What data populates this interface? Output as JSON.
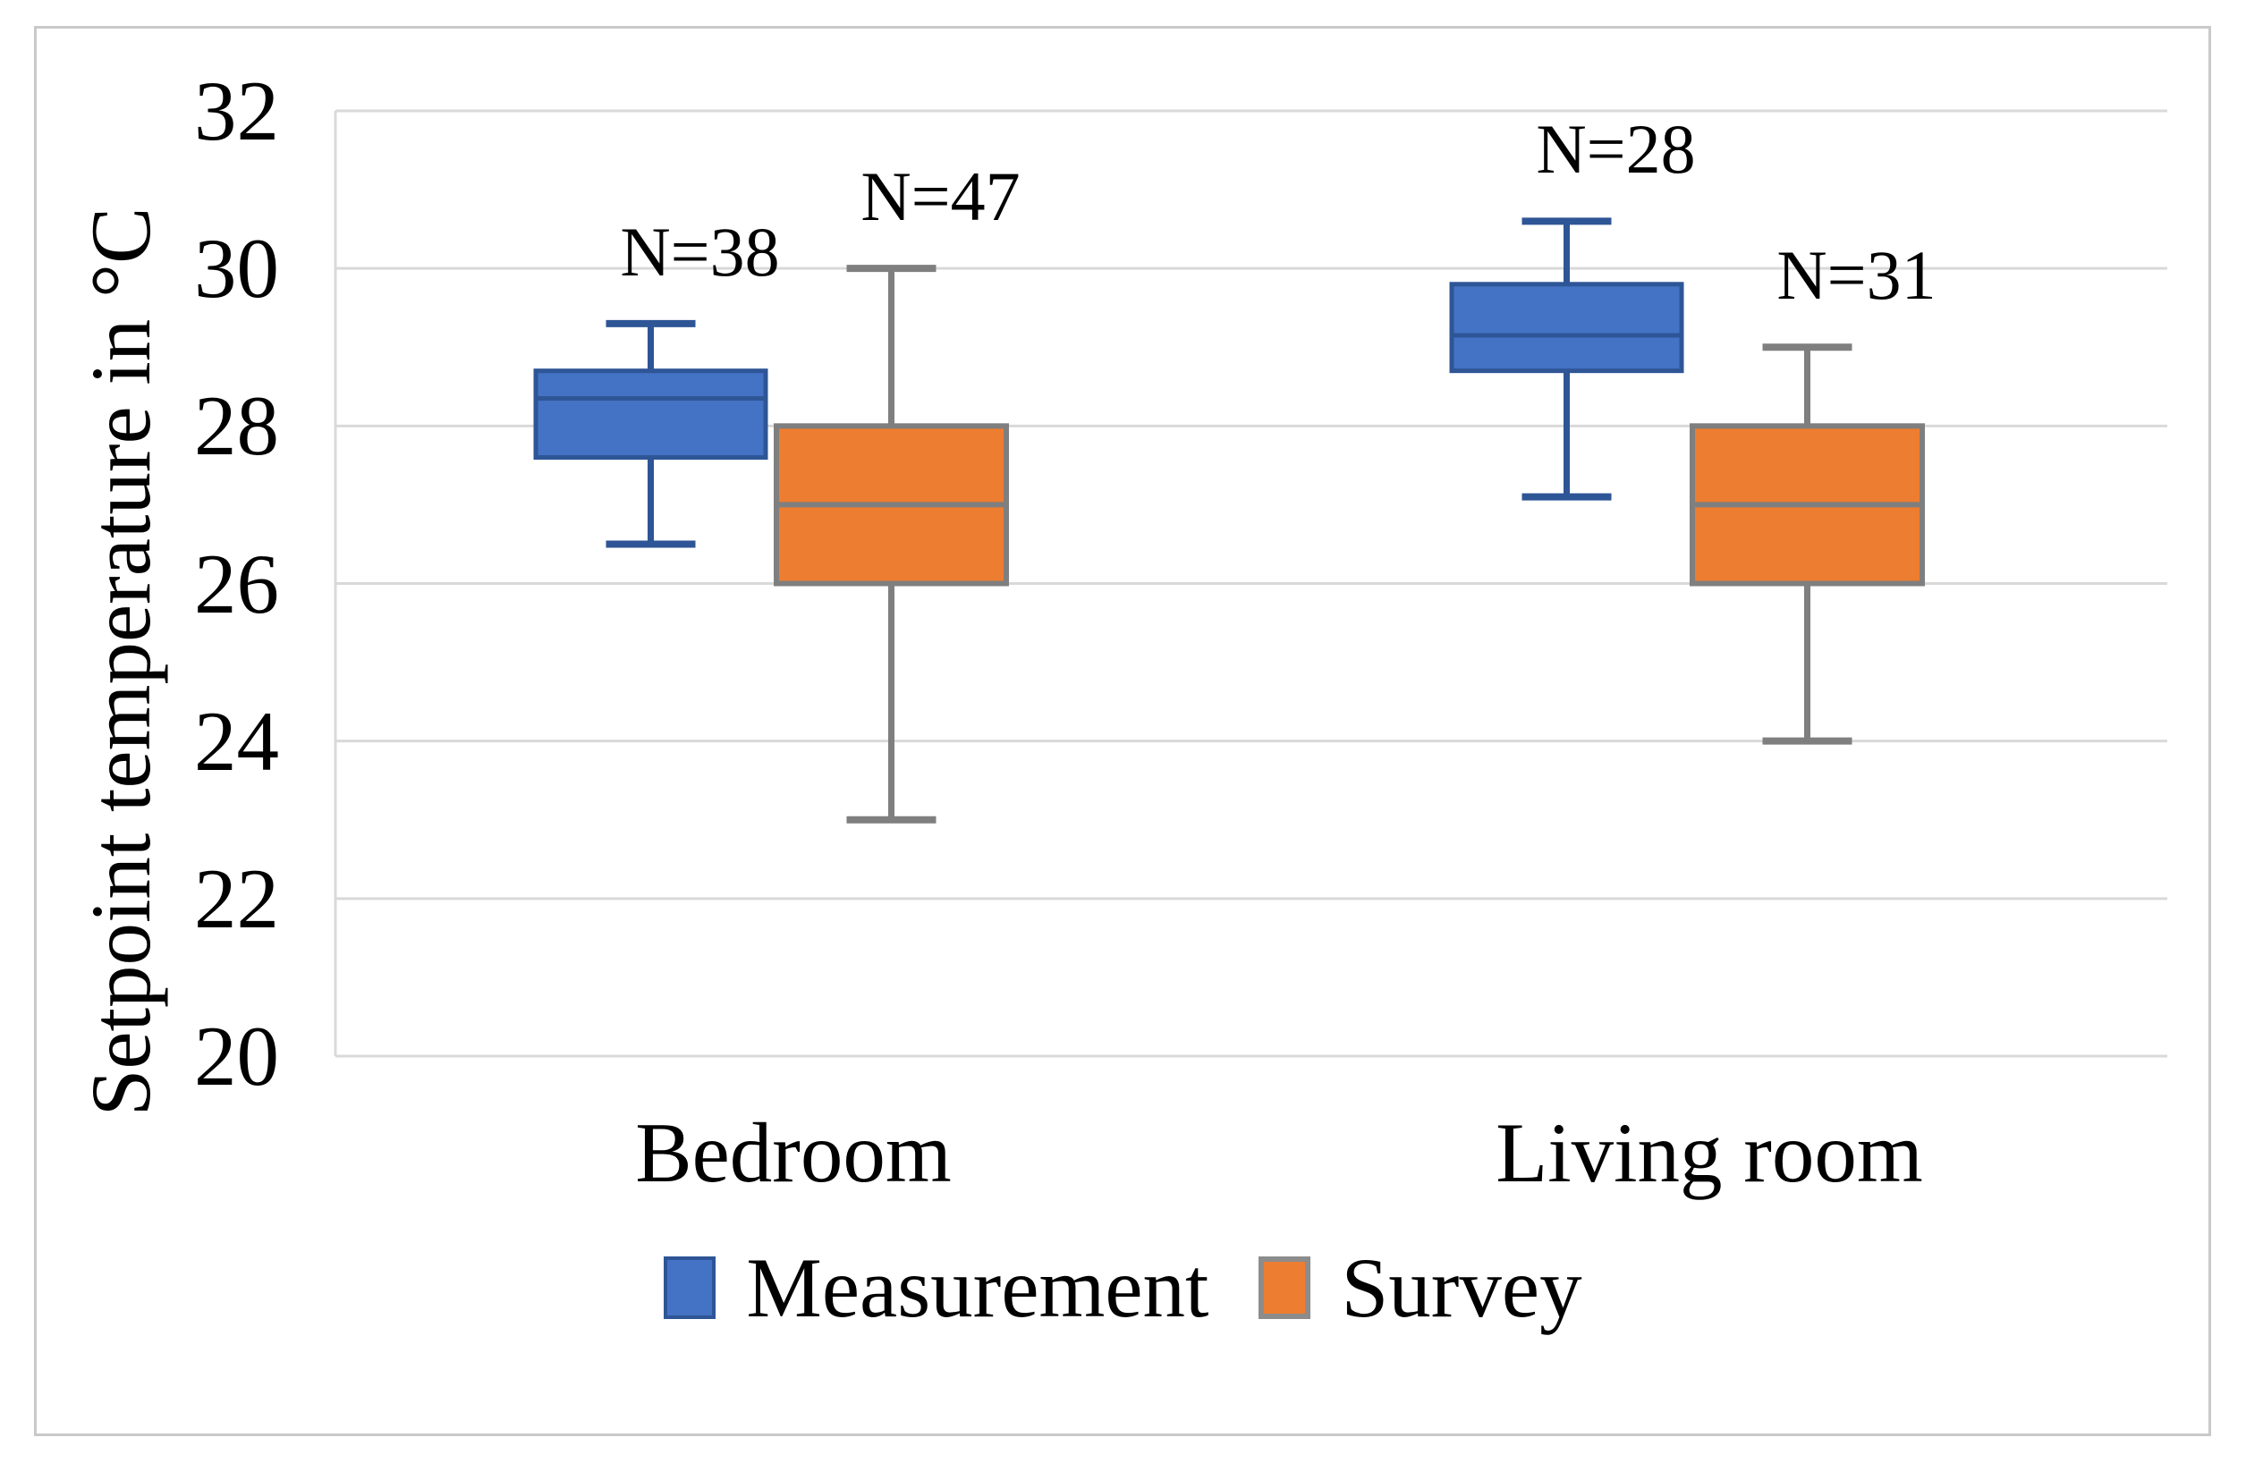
{
  "chart_data": {
    "type": "boxplot",
    "ylabel": "Setpoint temperature in °C",
    "categories": [
      "Bedroom",
      "Living room"
    ],
    "y_axis": {
      "min": 20,
      "max": 32,
      "step": 2,
      "tick_labels": [
        "32",
        "30",
        "28",
        "26",
        "24",
        "22",
        "20"
      ]
    },
    "grid_on": true,
    "gridline_color": "#d9d9d9",
    "frame_color": "#c9c9c9",
    "legend_position": "bottom",
    "legend": [
      "Measurement",
      "Survey"
    ],
    "series": [
      {
        "name": "Measurement",
        "color": "#4472C4",
        "border_color": "#2E5596",
        "boxes": [
          {
            "category": "Bedroom",
            "n": 38,
            "n_label": "N=38",
            "min": 26.5,
            "q1": 27.6,
            "median": 28.35,
            "q3": 28.7,
            "max": 29.3
          },
          {
            "category": "Living room",
            "n": 28,
            "n_label": "N=28",
            "min": 27.1,
            "q1": 28.7,
            "median": 29.15,
            "q3": 29.8,
            "max": 30.6
          }
        ]
      },
      {
        "name": "Survey",
        "color": "#ED7D31",
        "border_color": "#7F7F7F",
        "boxes": [
          {
            "category": "Bedroom",
            "n": 47,
            "n_label": "N=47",
            "min": 23.0,
            "q1": 26.0,
            "median": 27.0,
            "q3": 28.0,
            "max": 30.0
          },
          {
            "category": "Living room",
            "n": 31,
            "n_label": "N=31",
            "min": 24.0,
            "q1": 26.0,
            "median": 27.0,
            "q3": 28.0,
            "max": 29.0
          }
        ]
      }
    ]
  }
}
